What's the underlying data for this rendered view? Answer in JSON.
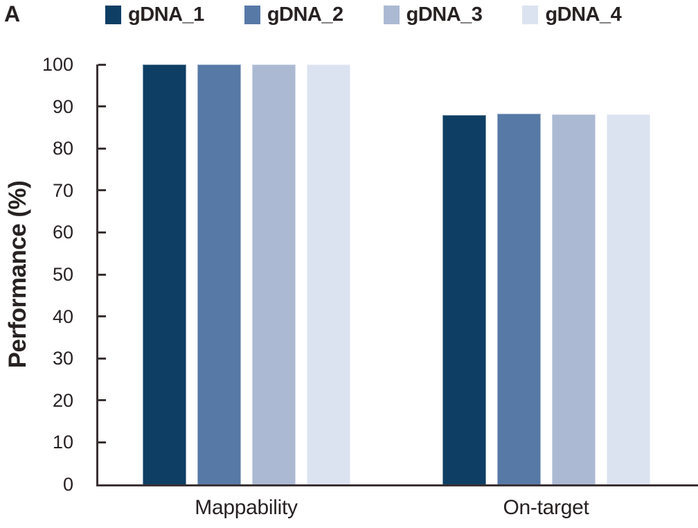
{
  "panel_label": "A",
  "y_axis": {
    "title": "Performance (%)",
    "ticks": [
      0,
      10,
      20,
      30,
      40,
      50,
      60,
      70,
      80,
      90,
      100
    ],
    "min": 0,
    "max": 100
  },
  "colors": {
    "axis": "#3a3133",
    "text": "#272122",
    "series": [
      "#0e3e64",
      "#5779a6",
      "#abb9d3",
      "#dce3f0"
    ]
  },
  "chart_data": {
    "type": "bar",
    "title": "",
    "xlabel": "",
    "ylabel": "Performance (%)",
    "ylim": [
      0,
      100
    ],
    "grid": false,
    "legend_position": "top",
    "categories": [
      "Mappability",
      "On-target"
    ],
    "series": [
      {
        "name": "gDNA_1",
        "color": "#0e3e64",
        "values": [
          100,
          88.0
        ]
      },
      {
        "name": "gDNA_2",
        "color": "#5779a6",
        "values": [
          100,
          88.3
        ]
      },
      {
        "name": "gDNA_3",
        "color": "#abb9d3",
        "values": [
          100,
          88.2
        ]
      },
      {
        "name": "gDNA_4",
        "color": "#dce3f0",
        "values": [
          100,
          88.2
        ]
      }
    ]
  }
}
